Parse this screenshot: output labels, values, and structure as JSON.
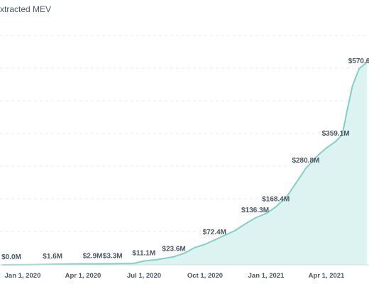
{
  "chart_data": {
    "type": "area",
    "title": "xtracted MEV",
    "xlabel": "",
    "ylabel": "",
    "grid": "horizontal-dashed",
    "color": "#7fd1c9",
    "fill_color": "#dcf3f1",
    "x_ticks": [
      "Jan 1, 2020",
      "Apr 1, 2020",
      "Jul 1, 2020",
      "Oct 1, 2020",
      "Jan 1, 2021",
      "Apr 1, 2021"
    ],
    "series": [
      {
        "values": [
          {
            "date": "2019-12-01",
            "mev": 0.0
          },
          {
            "date": "2020-01-15",
            "mev": 0.5
          },
          {
            "date": "2020-02-15",
            "mev": 1.6
          },
          {
            "date": "2020-03-15",
            "mev": 2.5
          },
          {
            "date": "2020-04-15",
            "mev": 2.9
          },
          {
            "date": "2020-05-15",
            "mev": 3.3
          },
          {
            "date": "2020-06-15",
            "mev": 4.0
          },
          {
            "date": "2020-07-01",
            "mev": 11.1
          },
          {
            "date": "2020-07-20",
            "mev": 15.0
          },
          {
            "date": "2020-08-15",
            "mev": 23.6
          },
          {
            "date": "2020-09-01",
            "mev": 35.0
          },
          {
            "date": "2020-09-15",
            "mev": 50.0
          },
          {
            "date": "2020-10-01",
            "mev": 60.0
          },
          {
            "date": "2020-10-15",
            "mev": 72.4
          },
          {
            "date": "2020-11-15",
            "mev": 100.0
          },
          {
            "date": "2020-12-01",
            "mev": 120.0
          },
          {
            "date": "2020-12-15",
            "mev": 136.3
          },
          {
            "date": "2021-01-01",
            "mev": 150.0
          },
          {
            "date": "2021-01-15",
            "mev": 168.4
          },
          {
            "date": "2021-02-01",
            "mev": 200.0
          },
          {
            "date": "2021-02-15",
            "mev": 240.0
          },
          {
            "date": "2021-03-01",
            "mev": 280.8
          },
          {
            "date": "2021-03-20",
            "mev": 320.0
          },
          {
            "date": "2021-04-01",
            "mev": 340.0
          },
          {
            "date": "2021-04-15",
            "mev": 359.1
          },
          {
            "date": "2021-04-25",
            "mev": 380.0
          },
          {
            "date": "2021-05-01",
            "mev": 440.0
          },
          {
            "date": "2021-05-10",
            "mev": 520.0
          },
          {
            "date": "2021-05-20",
            "mev": 570.6
          },
          {
            "date": "2021-06-01",
            "mev": 590.0
          }
        ]
      }
    ],
    "labels": [
      {
        "date": "2019-12-15",
        "text": "$0.0M"
      },
      {
        "date": "2020-02-15",
        "text": "$1.6M"
      },
      {
        "date": "2020-04-15",
        "text": "$2.9M"
      },
      {
        "date": "2020-05-15",
        "text": "$3.3M"
      },
      {
        "date": "2020-07-01",
        "text": "$11.1M"
      },
      {
        "date": "2020-08-15",
        "text": "$23.6M"
      },
      {
        "date": "2020-10-15",
        "text": "$72.4M"
      },
      {
        "date": "2020-12-15",
        "text": "$136.3M"
      },
      {
        "date": "2021-01-15",
        "text": "$168.4M"
      },
      {
        "date": "2021-03-01",
        "text": "$280.8M"
      },
      {
        "date": "2021-04-15",
        "text": "$359.1M"
      },
      {
        "date": "2021-05-20",
        "text": "$570.6"
      }
    ]
  }
}
